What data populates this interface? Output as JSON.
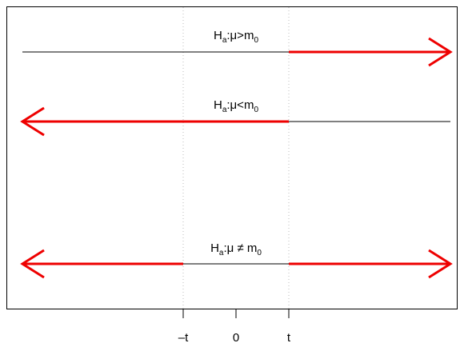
{
  "diagram": {
    "hypotheses": [
      {
        "main": "H",
        "sub1": "a",
        "mid": ":μ>m",
        "sub2": "0",
        "tail": "right"
      },
      {
        "main": "H",
        "sub1": "a",
        "mid": ":μ<m",
        "sub2": "0",
        "tail": "left"
      },
      {
        "main": "H",
        "sub1": "a",
        "mid": ":μ ≠ m",
        "sub2": "0",
        "tail": "both"
      }
    ],
    "axis": {
      "ticks": [
        "–t",
        "0",
        "t"
      ]
    },
    "colors": {
      "rejection": "#ee0000",
      "line": "#000000",
      "guide": "#bbbbbb"
    }
  }
}
